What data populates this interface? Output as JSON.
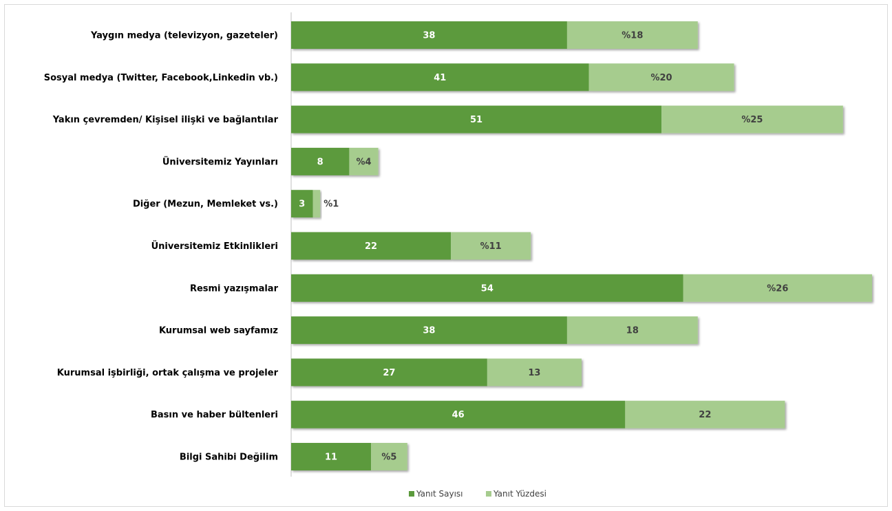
{
  "chart_data": {
    "type": "bar",
    "orientation": "horizontal",
    "stacked": true,
    "categories": [
      "Yaygın medya (televizyon, gazeteler)",
      "Sosyal medya (Twitter, Facebook,Linkedin vb.)",
      "Yakın çevremden/ Kişisel ilişki ve bağlantılar",
      "Üniversitemiz Yayınları",
      "Diğer (Mezun, Memleket vs.)",
      "Üniversitemiz Etkinlikleri",
      "Resmi yazışmalar",
      "Kurumsal web sayfamız",
      "Kurumsal işbirliği, ortak çalışma ve projeler",
      "Basın ve haber bültenleri",
      "Bilgi Sahibi Değilim"
    ],
    "series": [
      {
        "name": "Yanıt Sayısı",
        "color": "#5b9a3c",
        "label_color": "#ffffff",
        "values": [
          38,
          41,
          51,
          8,
          3,
          22,
          54,
          38,
          27,
          46,
          11
        ],
        "labels": [
          "38",
          "41",
          "51",
          "8",
          "3",
          "22",
          "54",
          "38",
          "27",
          "46",
          "11"
        ]
      },
      {
        "name": "Yanıt Yüzdesi",
        "color": "#a6cc8e",
        "label_color": "#404040",
        "values": [
          18,
          20,
          25,
          4,
          1,
          11,
          26,
          18,
          13,
          22,
          5
        ],
        "labels": [
          "%18",
          "%20",
          "%25",
          "%4",
          "%1",
          "%11",
          "%26",
          "18",
          "13",
          "22",
          "%5"
        ]
      }
    ],
    "xlim": [
      0,
      80
    ],
    "axis_visible": false,
    "grid": false,
    "legend_position": "bottom"
  }
}
